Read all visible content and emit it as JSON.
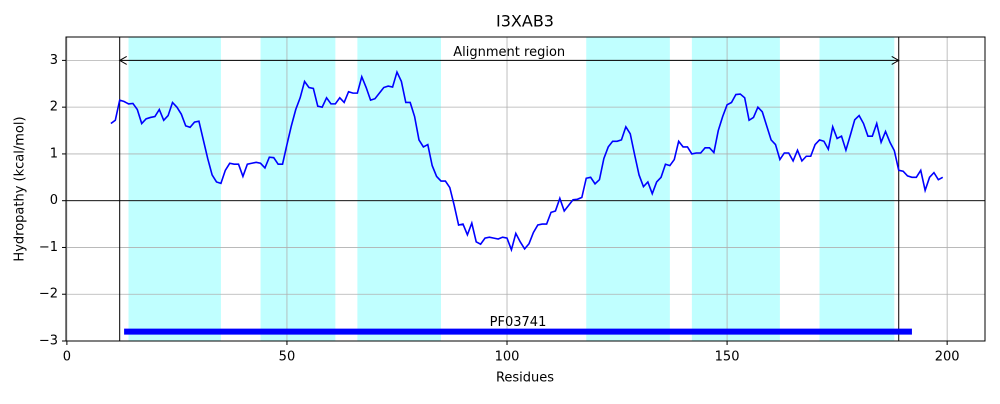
{
  "chart_data": {
    "type": "line",
    "title": "I3XAB3",
    "xlabel": "Residues",
    "ylabel": "Hydropathy (kcal/mol)",
    "x": [
      10,
      11,
      12,
      13,
      14,
      15,
      16,
      17,
      18,
      19,
      20,
      21,
      22,
      23,
      24,
      25,
      26,
      27,
      28,
      29,
      30,
      31,
      32,
      33,
      34,
      35,
      36,
      37,
      38,
      39,
      40,
      41,
      42,
      43,
      44,
      45,
      46,
      47,
      48,
      49,
      50,
      51,
      52,
      53,
      54,
      55,
      56,
      57,
      58,
      59,
      60,
      61,
      62,
      63,
      64,
      65,
      66,
      67,
      68,
      69,
      70,
      71,
      72,
      73,
      74,
      75,
      76,
      77,
      78,
      79,
      80,
      81,
      82,
      83,
      84,
      85,
      86,
      87,
      88,
      89,
      90,
      91,
      92,
      93,
      94,
      95,
      96,
      97,
      98,
      99,
      100,
      101,
      102,
      103,
      104,
      105,
      106,
      107,
      108,
      109,
      110,
      111,
      112,
      113,
      114,
      115,
      116,
      117,
      118,
      119,
      120,
      121,
      122,
      123,
      124,
      125,
      126,
      127,
      128,
      129,
      130,
      131,
      132,
      133,
      134,
      135,
      136,
      137,
      138,
      139,
      140,
      141,
      142,
      143,
      144,
      145,
      146,
      147,
      148,
      149,
      150,
      151,
      152,
      153,
      154,
      155,
      156,
      157,
      158,
      159,
      160,
      161,
      162,
      163,
      164,
      165,
      166,
      167,
      168,
      169,
      170,
      171,
      172,
      173,
      174,
      175,
      176,
      177,
      178,
      179,
      180,
      181,
      182,
      183,
      184,
      185,
      186,
      187,
      188,
      189,
      190,
      191,
      192,
      193,
      194,
      195,
      196,
      197,
      198,
      199
    ],
    "values": [
      1.65,
      1.72,
      2.15,
      2.12,
      2.07,
      2.08,
      1.95,
      1.65,
      1.75,
      1.78,
      1.8,
      1.95,
      1.72,
      1.82,
      2.1,
      2.0,
      1.85,
      1.6,
      1.57,
      1.68,
      1.7,
      1.3,
      0.9,
      0.55,
      0.4,
      0.37,
      0.65,
      0.8,
      0.78,
      0.78,
      0.52,
      0.78,
      0.8,
      0.82,
      0.8,
      0.7,
      0.93,
      0.92,
      0.78,
      0.78,
      1.2,
      1.6,
      1.95,
      2.2,
      2.55,
      2.42,
      2.4,
      2.02,
      2.0,
      2.2,
      2.07,
      2.07,
      2.2,
      2.1,
      2.33,
      2.3,
      2.3,
      2.65,
      2.42,
      2.15,
      2.18,
      2.3,
      2.42,
      2.45,
      2.43,
      2.75,
      2.55,
      2.1,
      2.1,
      1.8,
      1.3,
      1.15,
      1.2,
      0.75,
      0.52,
      0.42,
      0.42,
      0.28,
      -0.1,
      -0.52,
      -0.5,
      -0.73,
      -0.48,
      -0.88,
      -0.93,
      -0.8,
      -0.78,
      -0.8,
      -0.82,
      -0.78,
      -0.8,
      -1.05,
      -0.7,
      -0.88,
      -1.03,
      -0.92,
      -0.68,
      -0.52,
      -0.5,
      -0.5,
      -0.25,
      -0.22,
      0.05,
      -0.22,
      -0.1,
      0.02,
      0.03,
      0.07,
      0.48,
      0.5,
      0.36,
      0.45,
      0.9,
      1.15,
      1.27,
      1.27,
      1.3,
      1.58,
      1.43,
      0.98,
      0.55,
      0.3,
      0.4,
      0.15,
      0.4,
      0.5,
      0.78,
      0.75,
      0.88,
      1.27,
      1.15,
      1.15,
      1.0,
      1.02,
      1.02,
      1.13,
      1.13,
      1.03,
      1.5,
      1.8,
      2.05,
      2.1,
      2.27,
      2.28,
      2.2,
      1.72,
      1.78,
      2.0,
      1.9,
      1.6,
      1.3,
      1.2,
      0.88,
      1.02,
      1.02,
      0.85,
      1.08,
      0.85,
      0.95,
      0.95,
      1.2,
      1.3,
      1.27,
      1.1,
      1.58,
      1.33,
      1.38,
      1.08,
      1.4,
      1.73,
      1.82,
      1.65,
      1.38,
      1.38,
      1.65,
      1.25,
      1.48,
      1.25,
      1.07,
      0.65,
      0.63,
      0.53,
      0.5,
      0.5,
      0.65,
      0.22,
      0.5,
      0.6,
      0.45,
      0.5
    ],
    "color": "#0000ff",
    "regions": [
      [
        14,
        35
      ],
      [
        44,
        61
      ],
      [
        66,
        85
      ],
      [
        118,
        137
      ],
      [
        142,
        162
      ],
      [
        171,
        188
      ]
    ],
    "region_color": "#c0ffff",
    "hline": 0,
    "alignment": {
      "label": "Alignment region",
      "start": 12,
      "end": 189,
      "y": 3
    },
    "domain": {
      "label": "PF03741",
      "start": 13,
      "end": 192,
      "y": -2.8,
      "label_y": -2.6,
      "color": "#0000ff"
    },
    "xlim": [
      -0.2,
      208.6
    ],
    "ylim": [
      -3,
      3.5
    ],
    "xticks": [
      0,
      50,
      100,
      150,
      200
    ],
    "yticks": [
      {
        "value": -3,
        "label": "−3"
      },
      {
        "value": -2,
        "label": "−2"
      },
      {
        "value": -1,
        "label": "−1"
      },
      0,
      1,
      2,
      3
    ],
    "grid": true
  }
}
